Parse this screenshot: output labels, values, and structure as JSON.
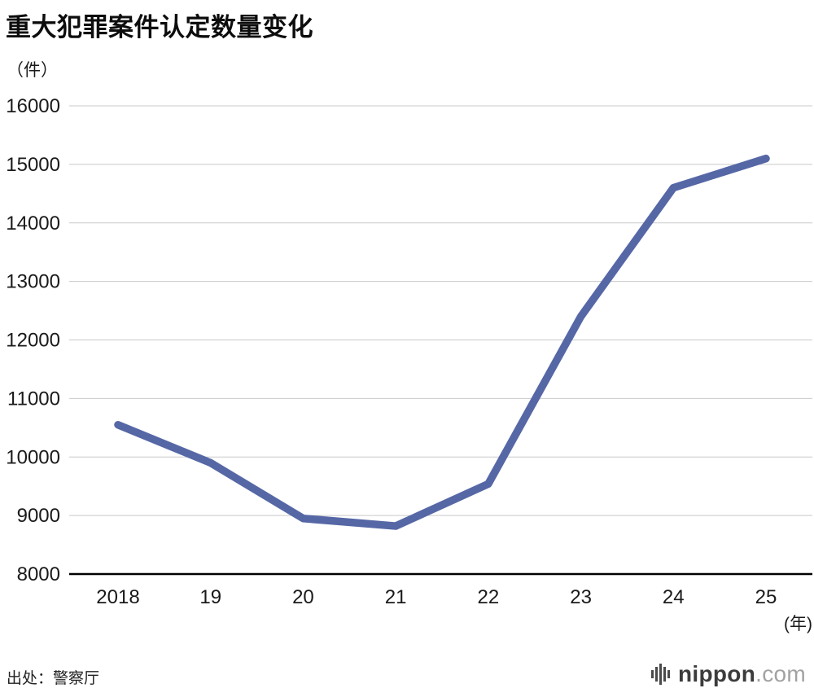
{
  "header": {
    "title": "重大犯罪案件认定数量变化",
    "unit_label": "（件）"
  },
  "footer": {
    "source": "出处：警察厅",
    "logo": {
      "name": "nippon",
      "tld": ".com"
    }
  },
  "chart_data": {
    "type": "line",
    "title": "重大犯罪案件认定数量变化",
    "categories": [
      "2018",
      "19",
      "20",
      "21",
      "22",
      "23",
      "24",
      "25"
    ],
    "values": [
      10550,
      9900,
      8950,
      8820,
      9540,
      12400,
      14600,
      15100
    ],
    "series_name": "重大犯罪案件认定数量",
    "xlabel": "(年)",
    "ylabel": "（件）",
    "ylim": [
      8000,
      16000
    ],
    "ytick_step": 1000,
    "grid": true,
    "legend": false,
    "line_color": "#5667a6",
    "grid_color": "#c9c9c9",
    "axis_color": "#000000",
    "tick_label_color": "#1a1a1a"
  }
}
